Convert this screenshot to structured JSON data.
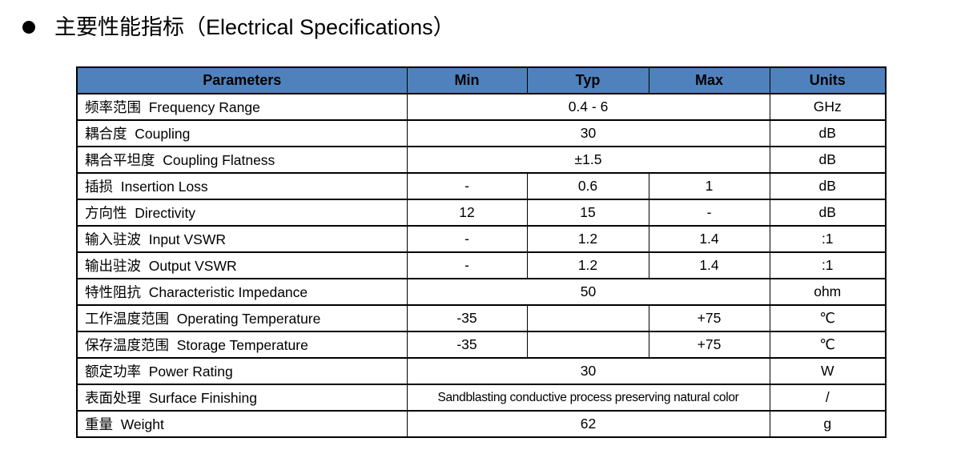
{
  "title": {
    "text": "主要性能指标（Electrical Specifications）"
  },
  "table": {
    "header": [
      "Parameters",
      "Min",
      "Typ",
      "Max",
      "Units"
    ],
    "header_bg": "#4f81bd",
    "border_color": "#000000",
    "rows": [
      {
        "param": "频率范围  Frequency Range",
        "values": [
          {
            "text": "0.4 - 6",
            "span": 3
          }
        ],
        "units": "GHz"
      },
      {
        "param": "耦合度  Coupling",
        "values": [
          {
            "text": "30",
            "span": 3
          }
        ],
        "units": "dB"
      },
      {
        "param": "耦合平坦度  Coupling Flatness",
        "values": [
          {
            "text": "±1.5",
            "span": 3
          }
        ],
        "units": "dB"
      },
      {
        "param": "插损  Insertion Loss",
        "values": [
          {
            "text": "-"
          },
          {
            "text": "0.6"
          },
          {
            "text": "1"
          }
        ],
        "units": "dB"
      },
      {
        "param": "方向性  Directivity",
        "values": [
          {
            "text": "12"
          },
          {
            "text": "15"
          },
          {
            "text": "-"
          }
        ],
        "units": "dB"
      },
      {
        "param": "输入驻波  Input VSWR",
        "values": [
          {
            "text": "-"
          },
          {
            "text": "1.2"
          },
          {
            "text": "1.4"
          }
        ],
        "units": ":1"
      },
      {
        "param": "输出驻波  Output VSWR",
        "values": [
          {
            "text": "-"
          },
          {
            "text": "1.2"
          },
          {
            "text": "1.4"
          }
        ],
        "units": ":1"
      },
      {
        "param": "特性阻抗  Characteristic Impedance",
        "values": [
          {
            "text": "50",
            "span": 3
          }
        ],
        "units": "ohm"
      },
      {
        "param": "工作温度范围  Operating Temperature",
        "values": [
          {
            "text": "-35"
          },
          {
            "text": ""
          },
          {
            "text": "+75"
          }
        ],
        "units": "℃"
      },
      {
        "param": "保存温度范围  Storage Temperature",
        "values": [
          {
            "text": "-35"
          },
          {
            "text": ""
          },
          {
            "text": "+75"
          }
        ],
        "units": "℃"
      },
      {
        "param": "额定功率  Power Rating",
        "values": [
          {
            "text": "30",
            "span": 3
          }
        ],
        "units": "W"
      },
      {
        "param": "表面处理  Surface Finishing",
        "values": [
          {
            "text": "Sandblasting conductive process preserving natural color",
            "span": 3
          }
        ],
        "units": "/"
      },
      {
        "param": "重量  Weight",
        "values": [
          {
            "text": "62",
            "span": 3
          }
        ],
        "units": "g"
      }
    ]
  }
}
